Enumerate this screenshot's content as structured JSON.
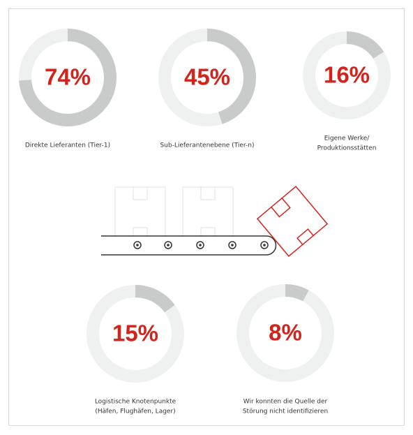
{
  "chart_data": [
    {
      "type": "donut",
      "title": [
        "Direkte Lieferanten (Tier-1)"
      ],
      "values": [
        74
      ],
      "value_labels": [
        "74%"
      ],
      "color": "#c8cbc9",
      "track_color": "#eff0f0"
    },
    {
      "type": "donut",
      "title": [
        "Sub-Lieferantenebene (Tier-n)"
      ],
      "values": [
        45
      ],
      "value_labels": [
        "45%"
      ],
      "color": "#c8cbc9",
      "track_color": "#eff0f0"
    },
    {
      "type": "donut",
      "title": [
        "Eigene Werke/",
        "Produktionsstätten"
      ],
      "values": [
        16
      ],
      "value_labels": [
        "16%"
      ],
      "color": "#c8cbc9",
      "track_color": "#eff0f0"
    },
    {
      "type": "donut",
      "title": [
        "Logistische Knotenpunkte",
        "(Häfen, Flughäfen, Lager)"
      ],
      "values": [
        15
      ],
      "value_labels": [
        "15%"
      ],
      "color": "#c8cbc9",
      "track_color": "#eff0f0"
    },
    {
      "type": "donut",
      "title": [
        "Wir konnten die Quelle der",
        "Störung nicht identifizieren"
      ],
      "values": [
        8
      ],
      "value_labels": [
        "8%"
      ],
      "color": "#c8cbc9",
      "track_color": "#eff0f0"
    }
  ]
}
